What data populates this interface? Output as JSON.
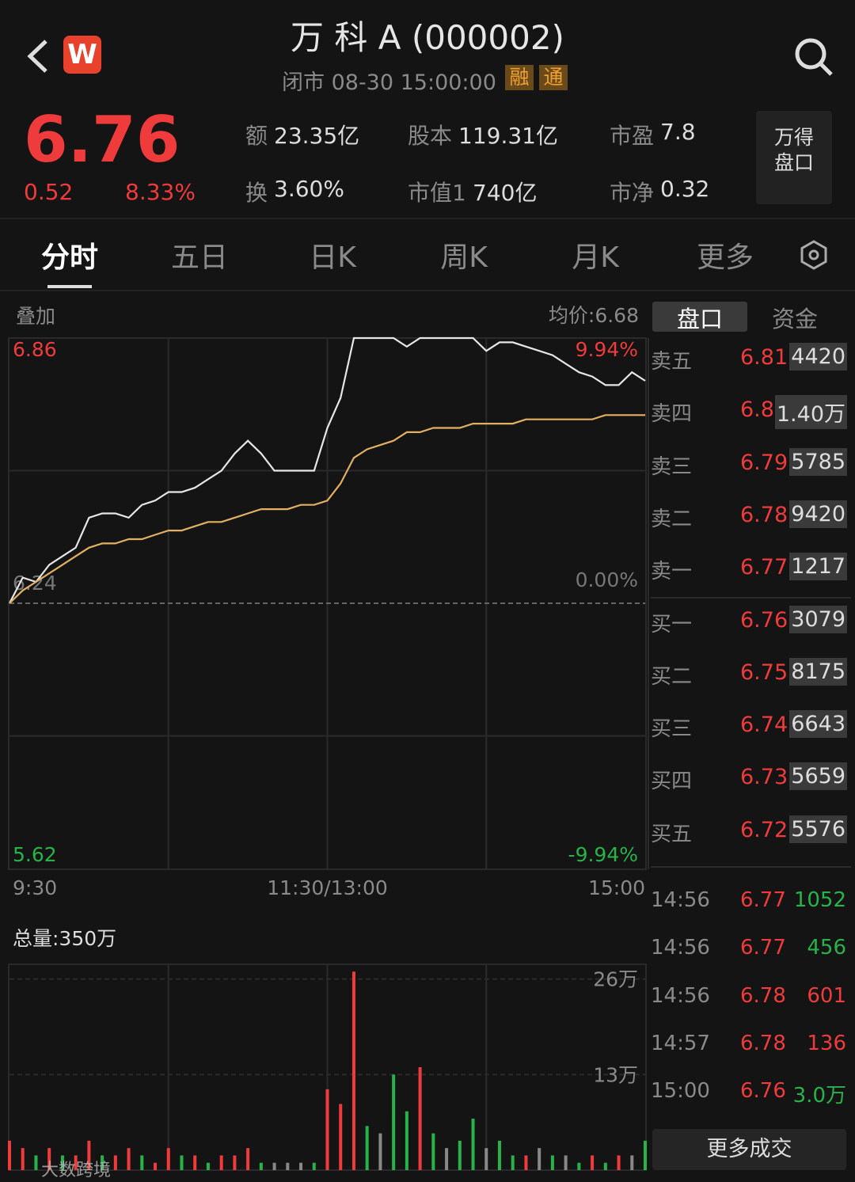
{
  "header": {
    "title": "万 科 A (000002)",
    "status": "闭市  08-30 15:00:00",
    "tags": [
      "融",
      "通"
    ]
  },
  "quote": {
    "price": "6.76",
    "change": "0.52",
    "change_pct": "8.33%",
    "stats": [
      {
        "label": "额",
        "value": "23.35亿"
      },
      {
        "label": "股本",
        "value": "119.31亿"
      },
      {
        "label": "市盈",
        "value": "7.8"
      },
      {
        "label": "换",
        "value": "3.60%"
      },
      {
        "label": "市值1",
        "value": "740亿"
      },
      {
        "label": "市净",
        "value": "0.32"
      }
    ],
    "panel_button": "万得\n盘口"
  },
  "tabs": [
    "分时",
    "五日",
    "日K",
    "周K",
    "月K",
    "更多"
  ],
  "chart_data": [
    {
      "type": "line",
      "overlay_label": "叠加",
      "avg_label": "均价:6.68",
      "categories": [
        "9:30",
        null,
        null,
        null,
        null,
        null,
        null,
        null,
        null,
        null,
        null,
        null,
        null,
        null,
        null,
        null,
        null,
        null,
        null,
        null,
        null,
        null,
        null,
        null,
        "11:30/13:00",
        null,
        null,
        null,
        null,
        null,
        null,
        null,
        null,
        null,
        null,
        null,
        null,
        null,
        null,
        null,
        null,
        null,
        null,
        null,
        null,
        null,
        null,
        null,
        "15:00"
      ],
      "series": [
        {
          "color": "#e6e6e6",
          "values": [
            6.24,
            6.3,
            6.29,
            6.33,
            6.35,
            6.37,
            6.44,
            6.45,
            6.45,
            6.44,
            6.47,
            6.48,
            6.5,
            6.5,
            6.51,
            6.53,
            6.55,
            6.59,
            6.62,
            6.59,
            6.55,
            6.55,
            6.55,
            6.55,
            6.65,
            6.72,
            6.86,
            6.86,
            6.86,
            6.86,
            6.84,
            6.86,
            6.86,
            6.86,
            6.86,
            6.86,
            6.83,
            6.85,
            6.85,
            6.84,
            6.83,
            6.82,
            6.8,
            6.78,
            6.77,
            6.75,
            6.75,
            6.78,
            6.76
          ]
        },
        {
          "color": "#e2b062",
          "values": [
            6.24,
            6.27,
            6.29,
            6.31,
            6.33,
            6.35,
            6.37,
            6.38,
            6.38,
            6.39,
            6.39,
            6.4,
            6.41,
            6.41,
            6.42,
            6.43,
            6.43,
            6.44,
            6.45,
            6.46,
            6.46,
            6.46,
            6.47,
            6.47,
            6.48,
            6.52,
            6.58,
            6.6,
            6.61,
            6.62,
            6.64,
            6.64,
            6.65,
            6.65,
            6.65,
            6.66,
            6.66,
            6.66,
            6.66,
            6.67,
            6.67,
            6.67,
            6.67,
            6.67,
            6.67,
            6.68,
            6.68,
            6.68,
            6.68
          ]
        }
      ],
      "ylim": [
        5.62,
        6.86
      ],
      "yticks": [
        6.86,
        6.24,
        5.62
      ],
      "y2lim": [
        -9.94,
        9.94
      ],
      "y2ticks": [
        {
          "value": 9.94,
          "label": "9.94%"
        },
        {
          "value": 0,
          "label": "0.00%"
        },
        {
          "value": -9.94,
          "label": "-9.94%"
        }
      ]
    },
    {
      "type": "bar",
      "total_label": "总量:350万",
      "values": [
        4,
        3,
        2,
        3,
        2,
        2,
        4,
        2,
        2,
        3,
        2,
        1,
        3,
        2,
        2,
        1,
        2,
        2,
        3,
        1,
        1,
        1,
        1,
        1,
        11,
        9,
        27,
        6,
        5,
        13,
        8,
        14,
        5,
        3,
        4,
        7,
        3,
        4,
        2,
        2,
        3,
        2,
        2,
        1,
        2,
        1,
        2,
        2,
        4
      ],
      "colors": [
        "#ef3b3b",
        "#ef3b3b",
        "#28b34a",
        "#ef3b3b",
        "#28b34a",
        "#ef3b3b",
        "#ef3b3b",
        "#28b34a",
        "#ef3b3b",
        "#ef3b3b",
        "#28b34a",
        "#ef3b3b",
        "#ef3b3b",
        "#28b34a",
        "#ef3b3b",
        "#28b34a",
        "#ef3b3b",
        "#ef3b3b",
        "#ef3b3b",
        "#28b34a",
        "#888888",
        "#888888",
        "#888888",
        "#28b34a",
        "#ef3b3b",
        "#ef3b3b",
        "#ef3b3b",
        "#28b34a",
        "#888888",
        "#28b34a",
        "#28b34a",
        "#ef3b3b",
        "#28b34a",
        "#888888",
        "#28b34a",
        "#28b34a",
        "#888888",
        "#28b34a",
        "#28b34a",
        "#ef3b3b",
        "#888888",
        "#28b34a",
        "#888888",
        "#28b34a",
        "#ef3b3b",
        "#28b34a",
        "#ef3b3b",
        "#888888",
        "#28b34a"
      ],
      "ylim": [
        0,
        28
      ],
      "yticks": [
        {
          "value": 26,
          "label": "26万"
        },
        {
          "value": 13,
          "label": "13万"
        }
      ]
    }
  ],
  "side_tabs": [
    "盘口",
    "资金"
  ],
  "order_book": {
    "sell": [
      {
        "label": "卖五",
        "price": "6.81",
        "volume": "4420"
      },
      {
        "label": "卖四",
        "price": "6.80",
        "volume": "1.40万"
      },
      {
        "label": "卖三",
        "price": "6.79",
        "volume": "5785"
      },
      {
        "label": "卖二",
        "price": "6.78",
        "volume": "9420"
      },
      {
        "label": "卖一",
        "price": "6.77",
        "volume": "1217"
      }
    ],
    "buy": [
      {
        "label": "买一",
        "price": "6.76",
        "volume": "3079"
      },
      {
        "label": "买二",
        "price": "6.75",
        "volume": "8175"
      },
      {
        "label": "买三",
        "price": "6.74",
        "volume": "6643"
      },
      {
        "label": "买四",
        "price": "6.73",
        "volume": "5659"
      },
      {
        "label": "买五",
        "price": "6.72",
        "volume": "5576"
      }
    ]
  },
  "trades": [
    {
      "time": "14:56",
      "price": "6.77",
      "volume": "1052",
      "color": "#28b34a"
    },
    {
      "time": "14:56",
      "price": "6.77",
      "volume": "456",
      "color": "#28b34a"
    },
    {
      "time": "14:56",
      "price": "6.78",
      "volume": "601",
      "color": "#ef3b3b"
    },
    {
      "time": "14:57",
      "price": "6.78",
      "volume": "136",
      "color": "#ef3b3b"
    },
    {
      "time": "15:00",
      "price": "6.76",
      "volume": "3.0万",
      "color": "#28b34a"
    }
  ],
  "more_trades": "更多成交",
  "watermark": "大数跨境"
}
